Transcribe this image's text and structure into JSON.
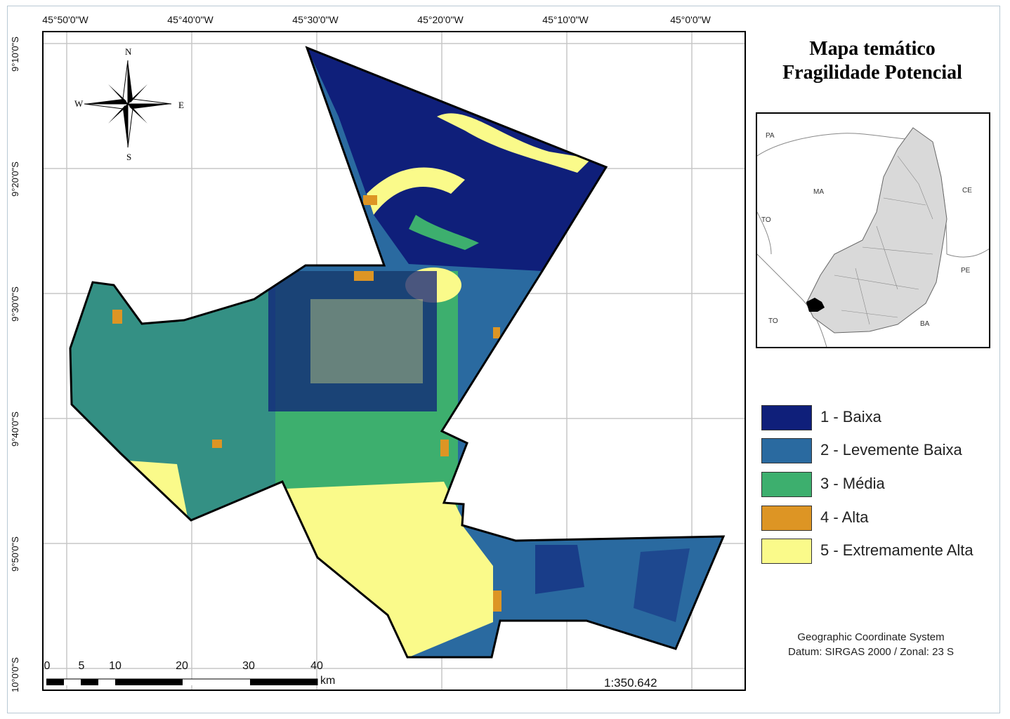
{
  "map": {
    "title_line1": "Mapa temático",
    "title_line2": "Fragilidade Potencial",
    "top_ticks": [
      "45°50'0\"W",
      "45°40'0\"W",
      "45°30'0\"W",
      "45°20'0\"W",
      "45°10'0\"W",
      "45°0'0\"W"
    ],
    "left_ticks": [
      "9°10'0\"S",
      "9°20'0\"S",
      "9°30'0\"S",
      "9°40'0\"S",
      "9°50'0\"S",
      "10°0'0\"S"
    ],
    "compass": {
      "n": "N",
      "s": "S",
      "e": "E",
      "w": "W"
    },
    "legend": [
      {
        "label": "1 - Baixa",
        "color": "#0f1f7a"
      },
      {
        "label": "2 - Levemente Baixa",
        "color": "#2a6aa0"
      },
      {
        "label": "3 - Média",
        "color": "#3daf6e"
      },
      {
        "label": "4 - Alta",
        "color": "#dd9524"
      },
      {
        "label": "5 - Extremamente Alta",
        "color": "#fafa8a"
      }
    ],
    "crs_line1": "Geographic Coordinate System",
    "crs_line2": "Datum: SIRGAS 2000 / Zonal: 23 S",
    "scale_numbers": [
      "0",
      "5",
      "10",
      "20",
      "30",
      "40"
    ],
    "scale_unit": "km",
    "scale_ratio": "1:350.642",
    "inset_labels": {
      "pa": "PA",
      "ma": "MA",
      "ce": "CE",
      "to1": "TO",
      "to2": "TO",
      "pe": "PE",
      "ba": "BA"
    }
  }
}
